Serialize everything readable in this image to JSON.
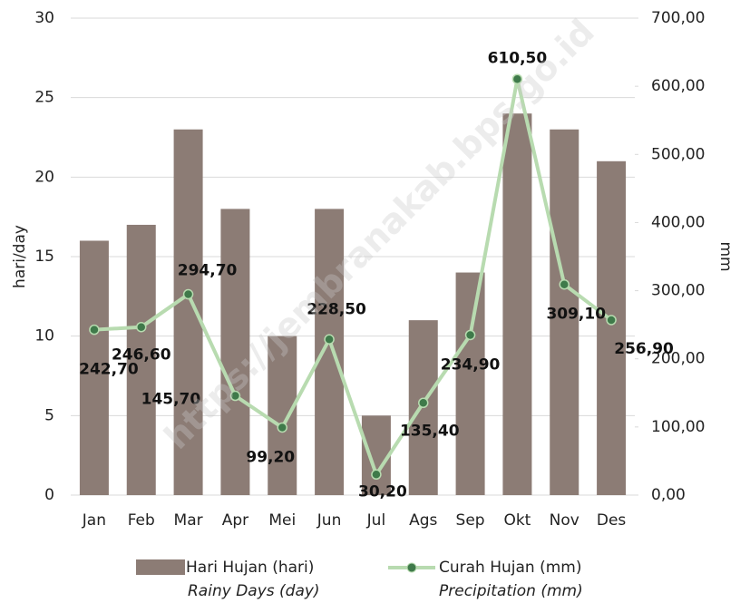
{
  "chart_data": {
    "type": "bar_line",
    "categories": [
      "Jan",
      "Feb",
      "Mar",
      "Apr",
      "Mei",
      "Jun",
      "Jul",
      "Ags",
      "Sep",
      "Okt",
      "Nov",
      "Des"
    ],
    "series": [
      {
        "name": "Hari Hujan (hari)",
        "name_en": "Rainy Days (day)",
        "type": "bar",
        "color": "#8c7c75",
        "values": [
          16,
          17,
          23,
          18,
          10,
          18,
          5,
          11,
          14,
          24,
          23,
          21
        ]
      },
      {
        "name": "Curah Hujan (mm)",
        "name_en": "Precipitation (mm)",
        "type": "line",
        "axis": "y2",
        "color": "#b8dbb0",
        "marker_color": "#3f7a4a",
        "values": [
          242.7,
          246.6,
          294.7,
          145.7,
          99.2,
          228.5,
          30.2,
          135.4,
          234.9,
          610.5,
          309.1,
          256.9
        ],
        "value_labels": [
          "242,70",
          "246,60",
          "294,70",
          "145,70",
          "99,20",
          "228,50",
          "30,20",
          "135,40",
          "234,90",
          "610,50",
          "309,10",
          "256,90"
        ]
      }
    ],
    "y_label": "hari/day",
    "y2_label": "mm",
    "ylim": [
      0,
      30
    ],
    "yticks": [
      0,
      5,
      10,
      15,
      20,
      25,
      30
    ],
    "y2lim": [
      0,
      700
    ],
    "y2ticks": [
      {
        "value": 0,
        "label": "0,00"
      },
      {
        "value": 100,
        "label": "100,00"
      },
      {
        "value": 200,
        "label": "200,00"
      },
      {
        "value": 300,
        "label": "300,00"
      },
      {
        "value": 400,
        "label": "400,00"
      },
      {
        "value": 500,
        "label": "500,00"
      },
      {
        "value": 600,
        "label": "600,00"
      },
      {
        "value": 700,
        "label": "700,00"
      }
    ],
    "grid": true,
    "legend": "bottom",
    "watermark": "https://jembranakab.bps.go.id"
  }
}
